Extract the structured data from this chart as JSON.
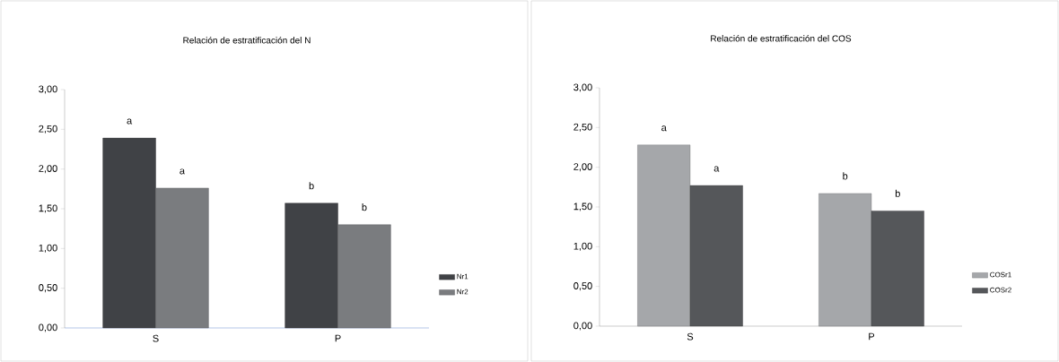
{
  "chart_data": [
    {
      "type": "bar",
      "title": "Relación de estratificación del N",
      "categories": [
        "S",
        "P"
      ],
      "series": [
        {
          "name": "Nr1",
          "color": "#404246",
          "values": [
            2.39,
            1.57
          ],
          "value_labels": [
            "a",
            "b"
          ]
        },
        {
          "name": "Nr2",
          "color": "#7a7c7f",
          "values": [
            1.76,
            1.3
          ],
          "value_labels": [
            "a",
            "b"
          ]
        }
      ],
      "ylim": [
        0,
        3
      ],
      "yticks": [
        {
          "value": 0,
          "label": "0,00"
        },
        {
          "value": 0.5,
          "label": "0,50"
        },
        {
          "value": 1,
          "label": "1,00"
        },
        {
          "value": 1.5,
          "label": "1,50"
        },
        {
          "value": 2,
          "label": "2,00"
        },
        {
          "value": 2.5,
          "label": "2,50"
        },
        {
          "value": 3,
          "label": "3,00"
        }
      ],
      "grid": false,
      "legend": "right"
    },
    {
      "type": "bar",
      "title": "Relación de estratificación del COS",
      "categories": [
        "S",
        "P"
      ],
      "series": [
        {
          "name": "COSr1",
          "color": "#a5a7aa",
          "values": [
            2.28,
            1.67
          ],
          "value_labels": [
            "a",
            "b"
          ]
        },
        {
          "name": "COSr2",
          "color": "#55575a",
          "values": [
            1.77,
            1.45
          ],
          "value_labels": [
            "a",
            "b"
          ]
        }
      ],
      "ylim": [
        0,
        3
      ],
      "yticks": [
        {
          "value": 0,
          "label": "0,00"
        },
        {
          "value": 0.5,
          "label": "0,50"
        },
        {
          "value": 1,
          "label": "1,00"
        },
        {
          "value": 1.5,
          "label": "1,50"
        },
        {
          "value": 2,
          "label": "2,00"
        },
        {
          "value": 2.5,
          "label": "2,50"
        },
        {
          "value": 3,
          "label": "3,00"
        }
      ],
      "grid": false,
      "legend": "right"
    }
  ]
}
